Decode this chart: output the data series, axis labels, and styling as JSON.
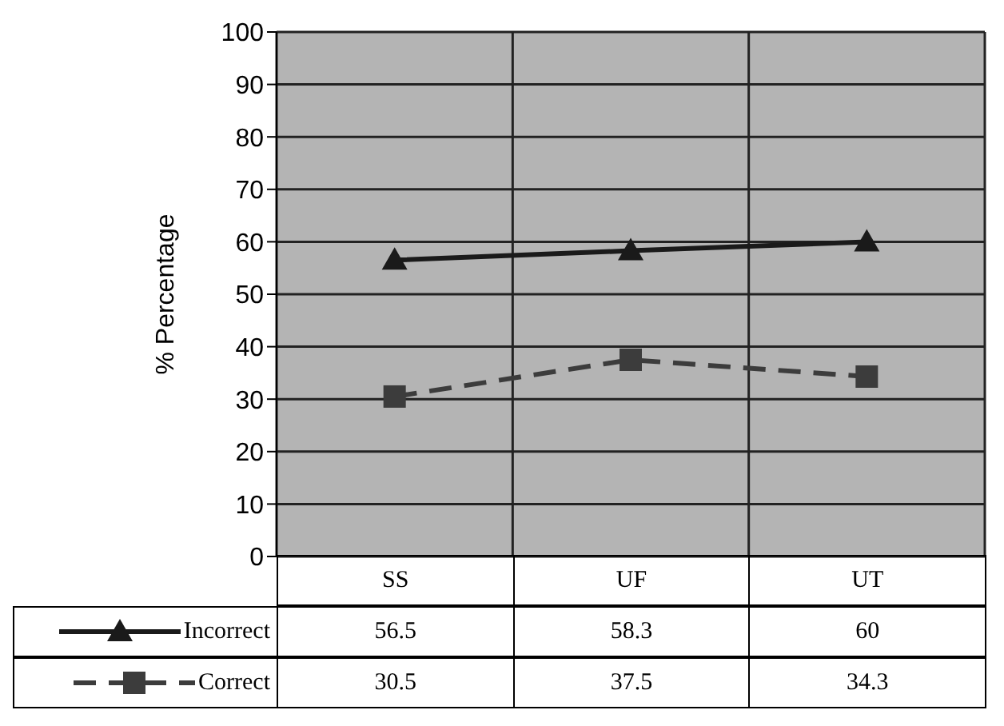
{
  "chart_data": {
    "type": "line",
    "ylabel": "% Percentage",
    "categories": [
      "SS",
      "UF",
      "UT"
    ],
    "series": [
      {
        "name": "Incorrect",
        "color": "#1a1a1a",
        "values": [
          56.5,
          58.3,
          60
        ],
        "marker": "triangle",
        "line_style": "solid"
      },
      {
        "name": "Correct",
        "color": "#3c3c3c",
        "values": [
          30.5,
          37.5,
          34.3
        ],
        "marker": "square",
        "line_style": "dashed"
      }
    ],
    "ylim": [
      0,
      100
    ],
    "yticks": [
      0,
      10,
      20,
      30,
      40,
      50,
      60,
      70,
      80,
      90,
      100
    ],
    "grid": true,
    "data_labels": true,
    "legend": "bottom"
  }
}
